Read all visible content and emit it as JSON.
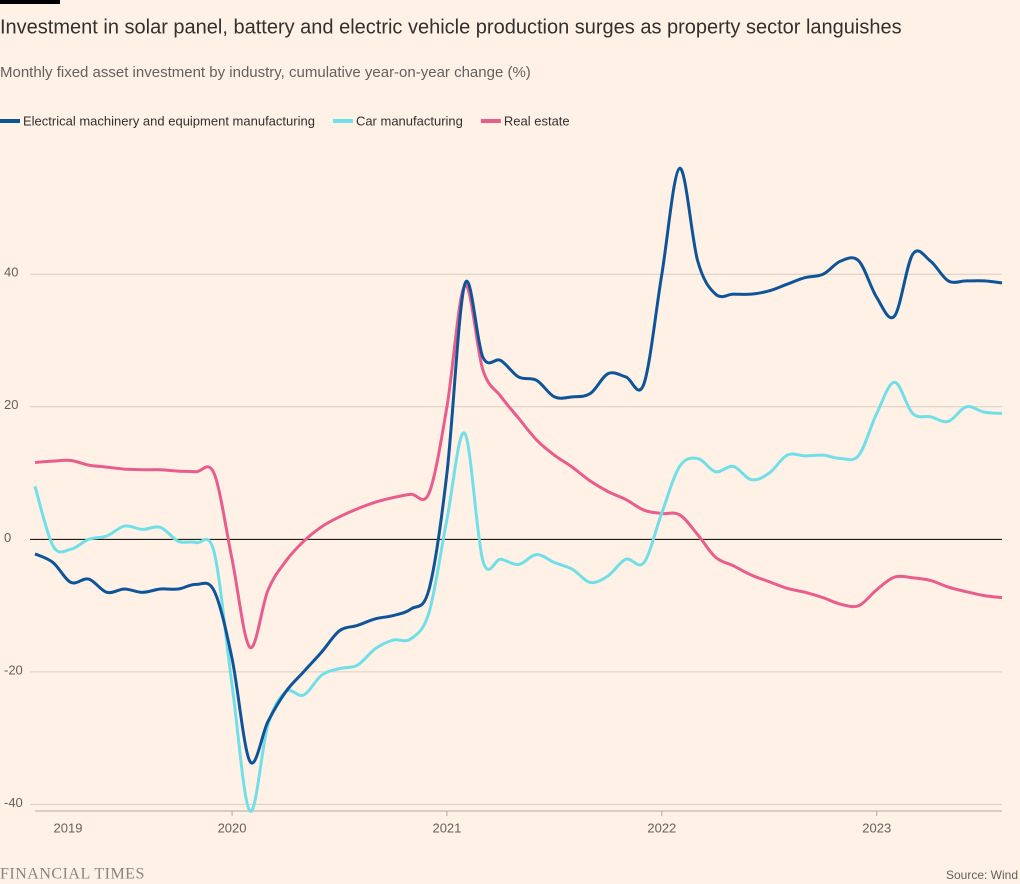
{
  "chart_data": {
    "type": "line",
    "title": "Investment in solar panel, battery and electric vehicle production surges as property sector languishes",
    "subtitle": "Monthly fixed asset investment by industry, cumulative year-on-year change (%)",
    "source": "Source: Wind",
    "brand": "FINANCIAL TIMES",
    "x": [
      2019.083,
      2019.167,
      2019.25,
      2019.333,
      2019.417,
      2019.5,
      2019.583,
      2019.667,
      2019.75,
      2019.833,
      2019.917,
      2020.0,
      2020.083,
      2020.167,
      2020.25,
      2020.333,
      2020.417,
      2020.5,
      2020.583,
      2020.667,
      2020.75,
      2020.833,
      2020.917,
      2021.0,
      2021.083,
      2021.167,
      2021.25,
      2021.333,
      2021.417,
      2021.5,
      2021.583,
      2021.667,
      2021.75,
      2021.833,
      2021.917,
      2022.0,
      2022.083,
      2022.167,
      2022.25,
      2022.333,
      2022.417,
      2022.5,
      2022.583,
      2022.667,
      2022.75,
      2022.833,
      2022.917,
      2023.0,
      2023.083,
      2023.167,
      2023.25,
      2023.333,
      2023.417,
      2023.5,
      2023.583
    ],
    "series": [
      {
        "name": "Electrical machinery and equipment manufacturing",
        "color": "#0f5499",
        "values": [
          -2.2,
          -3.5,
          -6.5,
          -6,
          -8,
          -7.5,
          -8,
          -7.5,
          -7.5,
          -6.8,
          -7.8,
          -18,
          -33.5,
          -27.5,
          -23,
          -20,
          -17,
          -13.8,
          -13,
          -12,
          -11.5,
          -10.5,
          -7.5,
          10,
          38.5,
          27.5,
          27,
          24.5,
          24,
          21.5,
          21.5,
          22,
          25,
          24.5,
          23.5,
          40,
          56,
          42,
          37,
          37,
          37,
          37.5,
          38.5,
          39.5,
          40,
          42,
          42,
          36.5,
          33.7,
          43,
          42,
          39,
          39,
          39,
          38.7
        ]
      },
      {
        "name": "Car manufacturing",
        "color": "#72dfe8",
        "values": [
          8,
          -1,
          -1.5,
          0,
          0.5,
          2,
          1.5,
          1.8,
          -0.3,
          -0.5,
          -2,
          -22,
          -41,
          -28,
          -23,
          -23.5,
          -20.5,
          -19.5,
          -19,
          -16.5,
          -15.2,
          -15,
          -11,
          3,
          16,
          -3.2,
          -3,
          -3.8,
          -2.3,
          -3.5,
          -4.5,
          -6.5,
          -5.5,
          -3,
          -3.5,
          4,
          11,
          12.2,
          10.2,
          11,
          9,
          10,
          12.7,
          12.6,
          12.7,
          12.2,
          12.7,
          19,
          23.7,
          19,
          18.5,
          17.8,
          20,
          19.2,
          19
        ]
      },
      {
        "name": "Real estate",
        "color": "#e95d8c",
        "values": [
          11.6,
          11.8,
          11.9,
          11.2,
          10.9,
          10.6,
          10.5,
          10.5,
          10.3,
          10.2,
          9.9,
          -3,
          -16.3,
          -7.7,
          -3.3,
          -0.3,
          1.9,
          3.4,
          4.6,
          5.6,
          6.3,
          6.8,
          7,
          20,
          38.3,
          25.6,
          21.6,
          18.3,
          15,
          12.7,
          10.9,
          8.8,
          7.2,
          6,
          4.4,
          3.9,
          3.7,
          0.7,
          -2.7,
          -4,
          -5.4,
          -6.4,
          -7.4,
          -8,
          -8.8,
          -9.8,
          -10,
          -7.6,
          -5.7,
          -5.8,
          -6.2,
          -7.2,
          -7.9,
          -8.5,
          -8.8
        ]
      }
    ],
    "xlim": [
      2019.083,
      2023.583
    ],
    "xticks": [
      2019,
      2020,
      2021,
      2022,
      2023
    ],
    "ylim": [
      -41,
      58
    ],
    "yticks": [
      -40,
      -20,
      0,
      20,
      40
    ],
    "grid": true
  }
}
